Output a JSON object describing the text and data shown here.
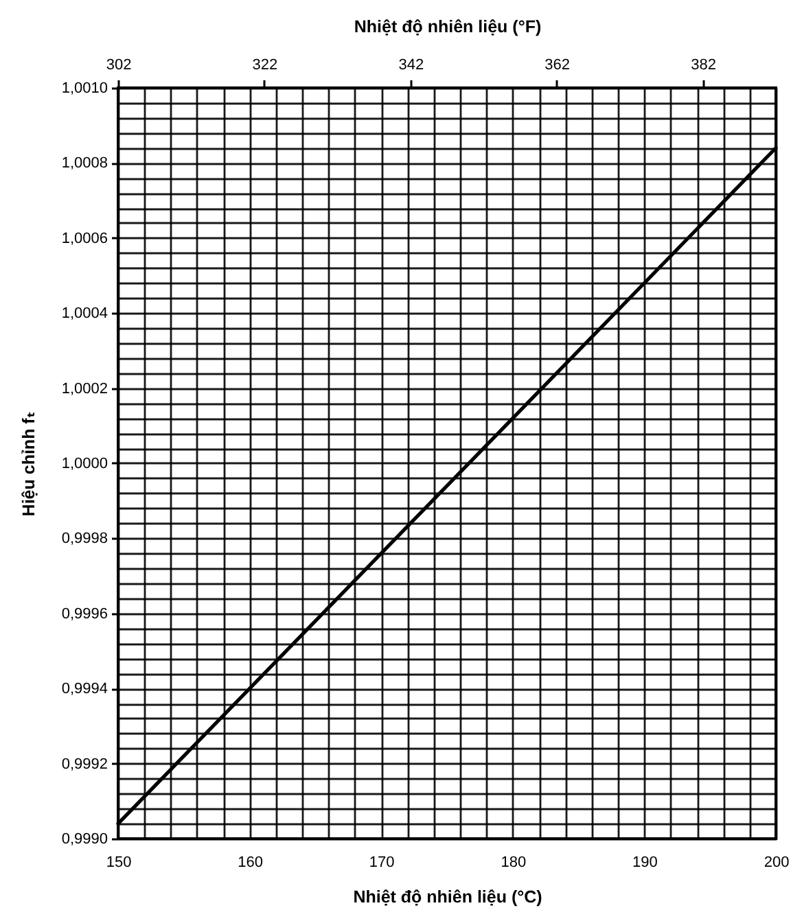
{
  "chart_data": {
    "type": "line",
    "xlabel": "Nhiệt độ nhiên liệu (°C)",
    "x2label": "Nhiệt độ nhiên liệu (°F)",
    "ylabel": "Hiệu chỉnh fₜ",
    "x": [
      150,
      200
    ],
    "series": [
      {
        "color": "#000000",
        "values": [
          0.99904,
          1.00084
        ]
      }
    ],
    "xlim": [
      150,
      200
    ],
    "xticks": [
      150,
      {
        "value": 152,
        "label": null
      },
      {
        "value": 154,
        "label": null
      },
      {
        "value": 156,
        "label": null
      },
      {
        "value": 158,
        "label": null
      },
      160,
      {
        "value": 162,
        "label": null
      },
      {
        "value": 164,
        "label": null
      },
      {
        "value": 166,
        "label": null
      },
      {
        "value": 168,
        "label": null
      },
      170,
      {
        "value": 172,
        "label": null
      },
      {
        "value": 174,
        "label": null
      },
      {
        "value": 176,
        "label": null
      },
      {
        "value": 178,
        "label": null
      },
      180,
      {
        "value": 182,
        "label": null
      },
      {
        "value": 184,
        "label": null
      },
      {
        "value": 186,
        "label": null
      },
      {
        "value": 188,
        "label": null
      },
      190,
      {
        "value": 192,
        "label": null
      },
      {
        "value": 194,
        "label": null
      },
      {
        "value": 196,
        "label": null
      },
      {
        "value": 198,
        "label": null
      },
      200
    ],
    "x2lim": [
      302,
      392
    ],
    "x2ticks": [
      302,
      322,
      342,
      362,
      382
    ],
    "ylim": [
      0.999,
      1.001
    ],
    "yticks": [
      {
        "value": 0.999,
        "label": "0,9990"
      },
      {
        "value": 0.99904,
        "label": null
      },
      {
        "value": 0.99908,
        "label": null
      },
      {
        "value": 0.99912,
        "label": null
      },
      {
        "value": 0.99916,
        "label": null
      },
      {
        "value": 0.9992,
        "label": "0,9992"
      },
      {
        "value": 0.99924,
        "label": null
      },
      {
        "value": 0.99928,
        "label": null
      },
      {
        "value": 0.99932,
        "label": null
      },
      {
        "value": 0.99936,
        "label": null
      },
      {
        "value": 0.9994,
        "label": "0,9994"
      },
      {
        "value": 0.99944,
        "label": null
      },
      {
        "value": 0.99948,
        "label": null
      },
      {
        "value": 0.99952,
        "label": null
      },
      {
        "value": 0.99956,
        "label": null
      },
      {
        "value": 0.9996,
        "label": "0,9996"
      },
      {
        "value": 0.99964,
        "label": null
      },
      {
        "value": 0.99968,
        "label": null
      },
      {
        "value": 0.99972,
        "label": null
      },
      {
        "value": 0.99976,
        "label": null
      },
      {
        "value": 0.9998,
        "label": "0,9998"
      },
      {
        "value": 0.99984,
        "label": null
      },
      {
        "value": 0.99988,
        "label": null
      },
      {
        "value": 0.99992,
        "label": null
      },
      {
        "value": 0.99996,
        "label": null
      },
      {
        "value": 1.0,
        "label": "1,0000"
      },
      {
        "value": 1.00004,
        "label": null
      },
      {
        "value": 1.00008,
        "label": null
      },
      {
        "value": 1.00012,
        "label": null
      },
      {
        "value": 1.00016,
        "label": null
      },
      {
        "value": 1.0002,
        "label": "1,0002"
      },
      {
        "value": 1.00024,
        "label": null
      },
      {
        "value": 1.00028,
        "label": null
      },
      {
        "value": 1.00032,
        "label": null
      },
      {
        "value": 1.00036,
        "label": null
      },
      {
        "value": 1.0004,
        "label": "1,0004"
      },
      {
        "value": 1.00044,
        "label": null
      },
      {
        "value": 1.00048,
        "label": null
      },
      {
        "value": 1.00052,
        "label": null
      },
      {
        "value": 1.00056,
        "label": null
      },
      {
        "value": 1.0006,
        "label": "1,0006"
      },
      {
        "value": 1.00064,
        "label": null
      },
      {
        "value": 1.00068,
        "label": null
      },
      {
        "value": 1.00072,
        "label": null
      },
      {
        "value": 1.00076,
        "label": null
      },
      {
        "value": 1.0008,
        "label": "1,0008"
      },
      {
        "value": 1.00084,
        "label": null
      },
      {
        "value": 1.00088,
        "label": null
      },
      {
        "value": 1.00092,
        "label": null
      },
      {
        "value": 1.00096,
        "label": null
      },
      {
        "value": 1.001,
        "label": "1,0010"
      }
    ],
    "grid": true
  }
}
